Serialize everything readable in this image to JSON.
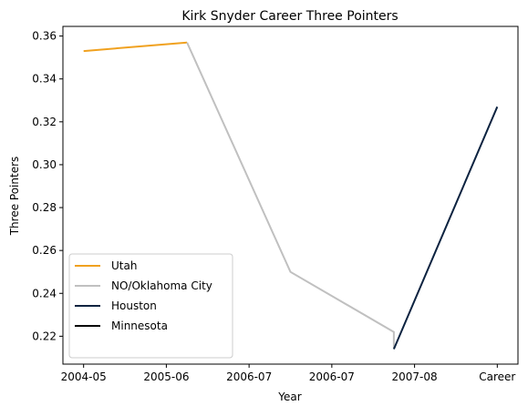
{
  "chart_data": {
    "type": "line",
    "title": "Kirk Snyder Career Three Pointers",
    "xlabel": "Year",
    "ylabel": "Three Pointers",
    "x_ticks": [
      "2004-05",
      "2005-06",
      "2006-07",
      "2006-07",
      "2007-08",
      "Career"
    ],
    "ylim": [
      0.207,
      0.3645
    ],
    "y_ticks": [
      "0.22",
      "0.24",
      "0.26",
      "0.28",
      "0.30",
      "0.32",
      "0.34",
      "0.36"
    ],
    "y_tick_values": [
      0.22,
      0.24,
      0.26,
      0.28,
      0.3,
      0.32,
      0.34,
      0.36
    ],
    "grid": false,
    "legend_position": "lower-left",
    "series": [
      {
        "name": "Utah",
        "color": "#f0a11f",
        "points": [
          [
            0,
            0.353
          ],
          [
            1.25,
            0.357
          ]
        ]
      },
      {
        "name": "NO/Oklahoma City",
        "color": "#c0c0c0",
        "points": [
          [
            1.25,
            0.357
          ],
          [
            2.5,
            0.25
          ],
          [
            3.75,
            0.222
          ],
          [
            3.75,
            0.214
          ]
        ]
      },
      {
        "name": "Houston",
        "color": "#0c2340",
        "points": [
          [
            3.75,
            0.214
          ],
          [
            5,
            0.327
          ]
        ]
      },
      {
        "name": "Minnesota",
        "color": "#000000",
        "points": []
      }
    ]
  }
}
